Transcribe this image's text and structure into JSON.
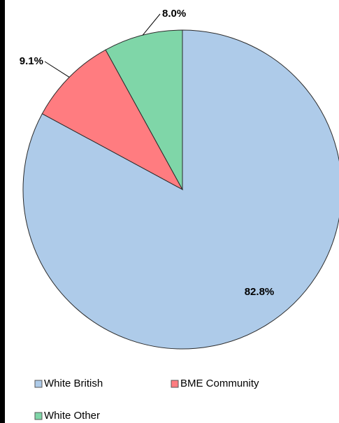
{
  "chart_data": {
    "type": "pie",
    "title": "",
    "start_angle_deg": 0,
    "direction": "clockwise",
    "legend_position": "bottom",
    "slices": [
      {
        "label": "White British",
        "value": 82.8,
        "display": "82.8%",
        "color": "#aecbe9"
      },
      {
        "label": "BME Community",
        "value": 9.1,
        "display": "9.1%",
        "color": "#ff7c80"
      },
      {
        "label": "White Other",
        "value": 8.0,
        "display": "8.0%",
        "color": "#7fd6a8"
      }
    ],
    "legend": [
      "White British",
      "BME Community",
      "White Other"
    ]
  }
}
